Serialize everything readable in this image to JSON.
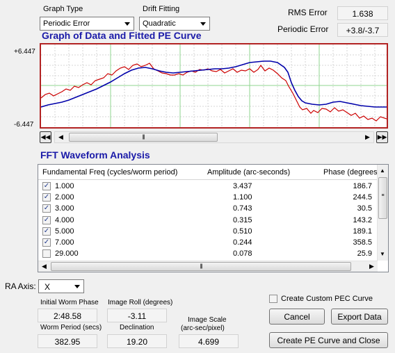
{
  "graph_type": {
    "label": "Graph Type",
    "value": "Periodic Error"
  },
  "drift_fitting": {
    "label": "Drift Fitting",
    "value": "Quadratic"
  },
  "rms_error": {
    "label": "RMS Error",
    "value": "1.638"
  },
  "periodic_error": {
    "label": "Periodic Error",
    "value": "+3.8/-3.7"
  },
  "graph": {
    "title": "Graph of Data and Fitted PE Curve",
    "y_max_label": "+6.447",
    "y_min_label": "-6.447",
    "line_colors": {
      "data": "#cc0000",
      "fit": "#0000aa",
      "grid_major": "#7fd27f",
      "grid_minor": "#cfcfcf"
    }
  },
  "fft": {
    "title": "FFT Waveform Analysis",
    "columns": [
      "Fundamental Freq (cycles/worm period)",
      "Amplitude (arc-seconds)",
      "Phase (degrees)"
    ],
    "rows": [
      {
        "checked": true,
        "freq": "1.000",
        "amp": "3.437",
        "phase": "186.7"
      },
      {
        "checked": true,
        "freq": "2.000",
        "amp": "1.100",
        "phase": "244.5"
      },
      {
        "checked": true,
        "freq": "3.000",
        "amp": "0.743",
        "phase": "30.5"
      },
      {
        "checked": true,
        "freq": "4.000",
        "amp": "0.315",
        "phase": "143.2"
      },
      {
        "checked": true,
        "freq": "5.000",
        "amp": "0.510",
        "phase": "189.1"
      },
      {
        "checked": true,
        "freq": "7.000",
        "amp": "0.244",
        "phase": "358.5"
      },
      {
        "checked": false,
        "freq": "29.000",
        "amp": "0.078",
        "phase": "25.9"
      }
    ]
  },
  "ra_axis": {
    "label": "RA Axis:",
    "value": "X"
  },
  "initial_worm_phase": {
    "label": "Initial Worm Phase",
    "value": "2:48.58"
  },
  "image_roll": {
    "label": "Image Roll (degrees)",
    "value": "-3.11"
  },
  "worm_period": {
    "label": "Worm Period (secs)",
    "value": "382.95"
  },
  "declination": {
    "label": "Declination",
    "value": "19.20"
  },
  "image_scale": {
    "label_line1": "Image Scale",
    "label_line2": "(arc-sec/pixel)",
    "value": "4.699"
  },
  "custom_pec": {
    "label": "Create Custom PEC Curve",
    "checked": false
  },
  "buttons": {
    "cancel": "Cancel",
    "export": "Export Data",
    "create_close": "Create PE Curve and Close"
  }
}
